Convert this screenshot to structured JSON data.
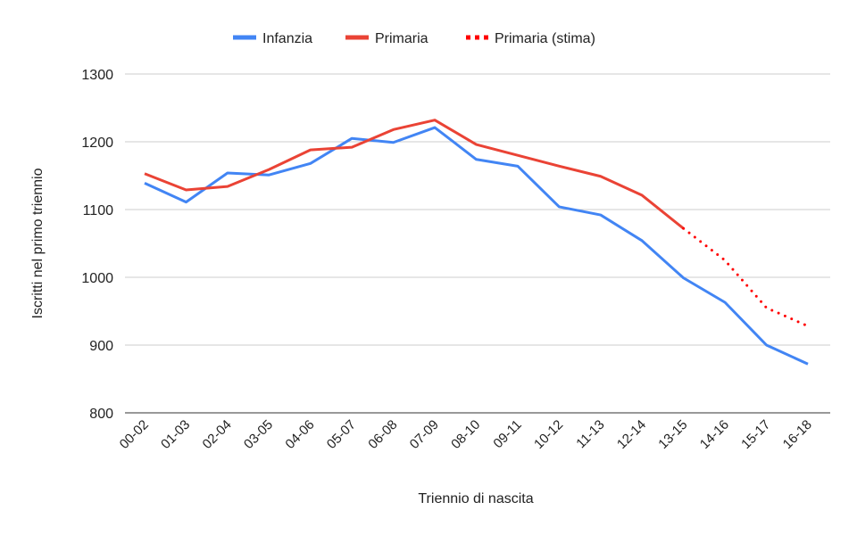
{
  "chart_data": {
    "type": "line",
    "title": "",
    "xlabel": "Triennio di nascita",
    "ylabel": "Iscritti nel primo triennio",
    "ylim": [
      800,
      1300
    ],
    "yticks": [
      800,
      900,
      1000,
      1100,
      1200,
      1300
    ],
    "grid": true,
    "legend_position": "top-center",
    "categories": [
      "00-02",
      "01-03",
      "02-04",
      "03-05",
      "04-06",
      "05-07",
      "06-08",
      "07-09",
      "08-10",
      "09-11",
      "10-12",
      "11-13",
      "12-14",
      "13-15",
      "14-16",
      "15-17",
      "16-18"
    ],
    "series": [
      {
        "name": "Infanzia",
        "color": "#4285f4",
        "style": "solid",
        "values": [
          1139,
          1111,
          1154,
          1151,
          1168,
          1205,
          1199,
          1221,
          1174,
          1164,
          1104,
          1092,
          1054,
          999,
          963,
          900,
          872
        ]
      },
      {
        "name": "Primaria",
        "color": "#ea4335",
        "style": "solid",
        "values": [
          1153,
          1129,
          1134,
          1159,
          1188,
          1192,
          1218,
          1232,
          1196,
          1180,
          1164,
          1149,
          1121,
          1072,
          null,
          null,
          null
        ]
      },
      {
        "name": "Primaria (stima)",
        "color": "#ff0000",
        "style": "dotted",
        "values": [
          null,
          null,
          null,
          null,
          null,
          null,
          null,
          null,
          null,
          null,
          null,
          null,
          null,
          1072,
          1025,
          955,
          928
        ]
      }
    ]
  }
}
